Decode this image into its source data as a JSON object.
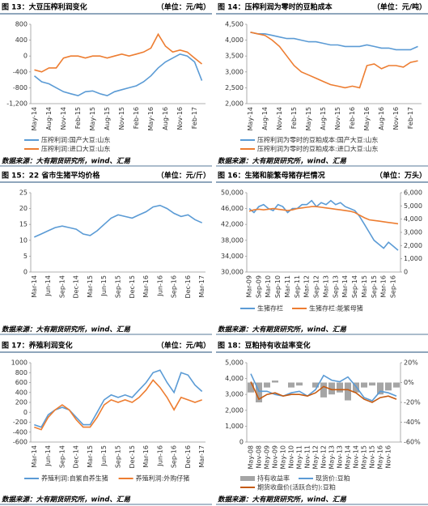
{
  "chart_data": [
    {
      "type": "line",
      "title": "图 13：大豆压榨利润变化",
      "unit": "（单位：元/吨）",
      "source": "数据来源：大有期货研究所，wind、汇易",
      "categories": [
        "May-14",
        null,
        "Aug-14",
        null,
        "Nov-14",
        null,
        "Feb-15",
        null,
        "May-15",
        null,
        "Aug-15",
        null,
        "Nov-15",
        null,
        "Feb-16",
        null,
        "May-16",
        null,
        "Aug-16",
        null,
        "Nov-16",
        null,
        "Feb-17",
        null
      ],
      "ylim": [
        -1200,
        800
      ],
      "yticks": [
        {
          "value": -1200,
          "label": "-1,200"
        },
        -800,
        -400,
        0,
        400,
        800
      ],
      "grid": false,
      "legend": true,
      "series": [
        {
          "name": "压榨利润:国产大豆:山东",
          "color": "#5b9bd5",
          "values": [
            -500,
            -650,
            -700,
            -800,
            -900,
            -950,
            -1000,
            -900,
            -880,
            -950,
            -1000,
            -900,
            -850,
            -800,
            -750,
            -650,
            -500,
            -300,
            -150,
            -50,
            50,
            0,
            -150,
            -620
          ]
        },
        {
          "name": "压榨利润:进口大豆:山东",
          "color": "#ed7d31",
          "values": [
            -350,
            -400,
            -300,
            -300,
            -50,
            0,
            0,
            -50,
            0,
            0,
            -50,
            0,
            50,
            0,
            50,
            100,
            200,
            550,
            250,
            100,
            150,
            100,
            -50,
            -200
          ]
        }
      ]
    },
    {
      "type": "line",
      "title": "图 14：压榨利润为零时的豆粕成本",
      "unit": "（单位：元/吨）",
      "source": "数据来源：大有期货研究所，wind、汇易",
      "categories": [
        "May-14",
        null,
        "Aug-14",
        null,
        "Nov-14",
        null,
        "Feb-15",
        null,
        "May-15",
        null,
        "Aug-15",
        null,
        "Nov-15",
        null,
        "Feb-16",
        null,
        "May-16",
        null,
        "Aug-16",
        null,
        "Nov-16",
        null,
        "Feb-17",
        null
      ],
      "ylim": [
        2000,
        4500
      ],
      "yticks": [
        {
          "value": 2000,
          "label": "2,000"
        },
        {
          "value": 2500,
          "label": "2,500"
        },
        {
          "value": 3000,
          "label": "3,000"
        },
        {
          "value": 3500,
          "label": "3,500"
        },
        {
          "value": 4000,
          "label": "4,000"
        },
        {
          "value": 4500,
          "label": "4,500"
        }
      ],
      "grid": false,
      "legend": true,
      "series": [
        {
          "name": "压榨利润为零时的豆粕成本:国产大豆:山东",
          "color": "#5b9bd5",
          "values": [
            4250,
            4200,
            4200,
            4150,
            4100,
            4050,
            4050,
            4000,
            3950,
            3950,
            3900,
            3850,
            3850,
            3800,
            3800,
            3800,
            3850,
            3800,
            3750,
            3750,
            3700,
            3700,
            3700,
            3800
          ]
        },
        {
          "name": "压榨利润为零时的豆粕成本:进口大豆:山东",
          "color": "#ed7d31",
          "values": [
            4250,
            4200,
            4150,
            4000,
            3800,
            3500,
            3200,
            3000,
            2900,
            2800,
            2700,
            2600,
            2550,
            2500,
            2550,
            2500,
            3200,
            3250,
            3100,
            3200,
            3200,
            3150,
            3300,
            3350
          ]
        }
      ]
    },
    {
      "type": "line",
      "title": "图 15：22 省市生猪平均价格",
      "unit": "（单位：元/斤）",
      "source": "数据来源：大有期货研究所，wind、汇易",
      "categories": [
        "Mar-14",
        null,
        "Jun-14",
        null,
        "Sep-14",
        null,
        "Dec-14",
        null,
        "Mar-15",
        null,
        "Jun-15",
        null,
        "Sep-15",
        null,
        "Dec-15",
        null,
        "Mar-16",
        null,
        "Jun-16",
        null,
        "Sep-16",
        null,
        "Dec-16",
        null,
        "Mar-17"
      ],
      "ylim": [
        0,
        25
      ],
      "yticks": [
        0,
        5,
        10,
        15,
        20,
        25
      ],
      "grid": false,
      "legend": false,
      "series": [
        {
          "name": "22省市生猪平均价格",
          "color": "#5b9bd5",
          "values": [
            11,
            12,
            13,
            14,
            14.5,
            14,
            13.5,
            12,
            11.5,
            13,
            15,
            17,
            18,
            17.5,
            17,
            18,
            19,
            20.5,
            21,
            20,
            18.5,
            17.5,
            18,
            16.5,
            15.5
          ]
        }
      ]
    },
    {
      "type": "line",
      "title": "图 16：生猪和能繁母猪存栏情况",
      "unit": "（单位：万头）",
      "source": "数据来源：大有期货研究所，wind、汇易",
      "categories": [
        "Mar-09",
        null,
        "Sep-09",
        null,
        "Mar-10",
        null,
        "Sep-10",
        null,
        "Mar-11",
        null,
        "Sep-11",
        null,
        "Mar-12",
        null,
        "Sep-12",
        null,
        "Mar-13",
        null,
        "Sep-13",
        null,
        "Mar-14",
        null,
        "Sep-14",
        null,
        "Mar-15",
        null,
        "Sep-15",
        null,
        "Mar-16",
        null,
        "Sep-16",
        null
      ],
      "ylim": [
        30000,
        50000
      ],
      "yticks": [
        {
          "value": 30000,
          "label": "30,000"
        },
        {
          "value": 34000,
          "label": "34,000"
        },
        {
          "value": 38000,
          "label": "38,000"
        },
        {
          "value": 42000,
          "label": "42,000"
        },
        {
          "value": 46000,
          "label": "46,000"
        },
        {
          "value": 50000,
          "label": "50,000"
        }
      ],
      "y2lim": [
        0,
        6000
      ],
      "y2ticks": [
        0,
        {
          "value": 1000,
          "label": "1,000"
        },
        {
          "value": 2000,
          "label": "2,000"
        },
        {
          "value": 3000,
          "label": "3,000"
        },
        {
          "value": 4000,
          "label": "4,000"
        },
        {
          "value": 5000,
          "label": "5,000"
        },
        {
          "value": 6000,
          "label": "6,000"
        }
      ],
      "grid": false,
      "legend": true,
      "series": [
        {
          "name": "生猪存栏",
          "color": "#5b9bd5",
          "values": [
            46000,
            45000,
            46500,
            47000,
            46000,
            45500,
            47000,
            46500,
            45000,
            46000,
            46000,
            47000,
            47000,
            48000,
            46500,
            47500,
            47000,
            48000,
            47000,
            47500,
            46500,
            46000,
            45500,
            44000,
            42000,
            40000,
            38000,
            37000,
            36000,
            37500,
            36500,
            35500
          ]
        },
        {
          "name": "生猪存栏:能繁母猪",
          "color": "#ed7d31",
          "axis": "y2",
          "values": [
            4600,
            4700,
            4750,
            4700,
            4750,
            4800,
            4750,
            4700,
            4650,
            4700,
            4800,
            4850,
            4900,
            4950,
            4950,
            4900,
            4850,
            4800,
            4750,
            4700,
            4650,
            4600,
            4500,
            4300,
            4100,
            3950,
            3900,
            3850,
            3800,
            3750,
            3700,
            3650
          ]
        }
      ]
    },
    {
      "type": "line",
      "title": "图 17：养殖利润变化",
      "unit": "（单位：元/吨）",
      "source": "数据来源：大有期货研究所，wind、汇易",
      "categories": [
        "Mar-14",
        null,
        "Jun-14",
        null,
        "Sep-14",
        null,
        "Dec-14",
        null,
        "Mar-15",
        null,
        "Jun-15",
        null,
        "Sep-15",
        null,
        "Dec-15",
        null,
        "Mar-16",
        null,
        "Jun-16",
        null,
        "Sep-16",
        null,
        "Dec-16",
        null,
        "Mar-17"
      ],
      "ylim": [
        -600,
        1000
      ],
      "yticks": [
        -600,
        -400,
        -200,
        0,
        200,
        400,
        600,
        800,
        1000
      ],
      "grid": false,
      "legend": true,
      "series": [
        {
          "name": "养殖利润:自繁自养生猪",
          "color": "#5b9bd5",
          "values": [
            -250,
            -300,
            -50,
            50,
            100,
            50,
            -100,
            -250,
            -250,
            0,
            250,
            350,
            300,
            350,
            300,
            450,
            600,
            800,
            850,
            600,
            400,
            800,
            750,
            550,
            420
          ]
        },
        {
          "name": "养殖利润:外购仔猪",
          "color": "#ed7d31",
          "values": [
            -300,
            -350,
            -100,
            50,
            150,
            50,
            -150,
            -300,
            -300,
            -100,
            150,
            250,
            200,
            250,
            200,
            300,
            450,
            650,
            500,
            300,
            50,
            300,
            250,
            200,
            250
          ]
        }
      ]
    },
    {
      "type": "line",
      "title": "图 18：豆粕持有收益率变化",
      "source": "数据来源：大有期货研究所，wind、汇易",
      "categories": [
        "May-08",
        "Nov-08",
        "May-09",
        "Nov-09",
        "May-10",
        "Nov-10",
        "May-11",
        "Nov-11",
        "May-12",
        "Nov-12",
        "May-13",
        "Nov-13",
        "May-14",
        "Nov-14",
        "May-15",
        "Nov-15",
        "May-16",
        "Nov-16",
        null
      ],
      "ylim": [
        0,
        5000
      ],
      "yticks": [
        0,
        {
          "value": 1000,
          "label": "1,000"
        },
        {
          "value": 2000,
          "label": "2,000"
        },
        {
          "value": 3000,
          "label": "3,000"
        },
        {
          "value": 4000,
          "label": "4,000"
        },
        {
          "value": 5000,
          "label": "5,000"
        }
      ],
      "y2lim": [
        -60,
        20
      ],
      "y2ticks": [
        {
          "value": -60,
          "label": "-60%"
        },
        {
          "value": -40,
          "label": "-40%"
        },
        {
          "value": -20,
          "label": "-20%"
        },
        {
          "value": 0,
          "label": "0%"
        },
        {
          "value": 20,
          "label": "20%"
        }
      ],
      "grid": false,
      "legend": true,
      "series": [
        {
          "name": "持有收益率",
          "color": "#a5a5a5",
          "axis": "y2",
          "type": "bar",
          "values": [
            -10,
            -20,
            -5,
            2,
            0,
            -5,
            -3,
            0,
            -5,
            -15,
            -12,
            -10,
            -18,
            -10,
            -5,
            -3,
            -12,
            -8,
            -5
          ]
        },
        {
          "name": "现货价:豆粕",
          "color": "#5b9bd5",
          "values": [
            4300,
            3200,
            3200,
            3000,
            2900,
            3100,
            3200,
            2900,
            3300,
            4200,
            3900,
            3800,
            4100,
            3500,
            2800,
            2600,
            3200,
            3100,
            2900
          ]
        },
        {
          "name": "期货收盘价(活跃合约):豆粕",
          "color": "#c55a11",
          "values": [
            3800,
            2700,
            3000,
            3100,
            2900,
            3000,
            3000,
            2900,
            3100,
            3500,
            3300,
            3300,
            3300,
            3100,
            2700,
            2500,
            2800,
            2900,
            2700
          ]
        }
      ]
    }
  ]
}
